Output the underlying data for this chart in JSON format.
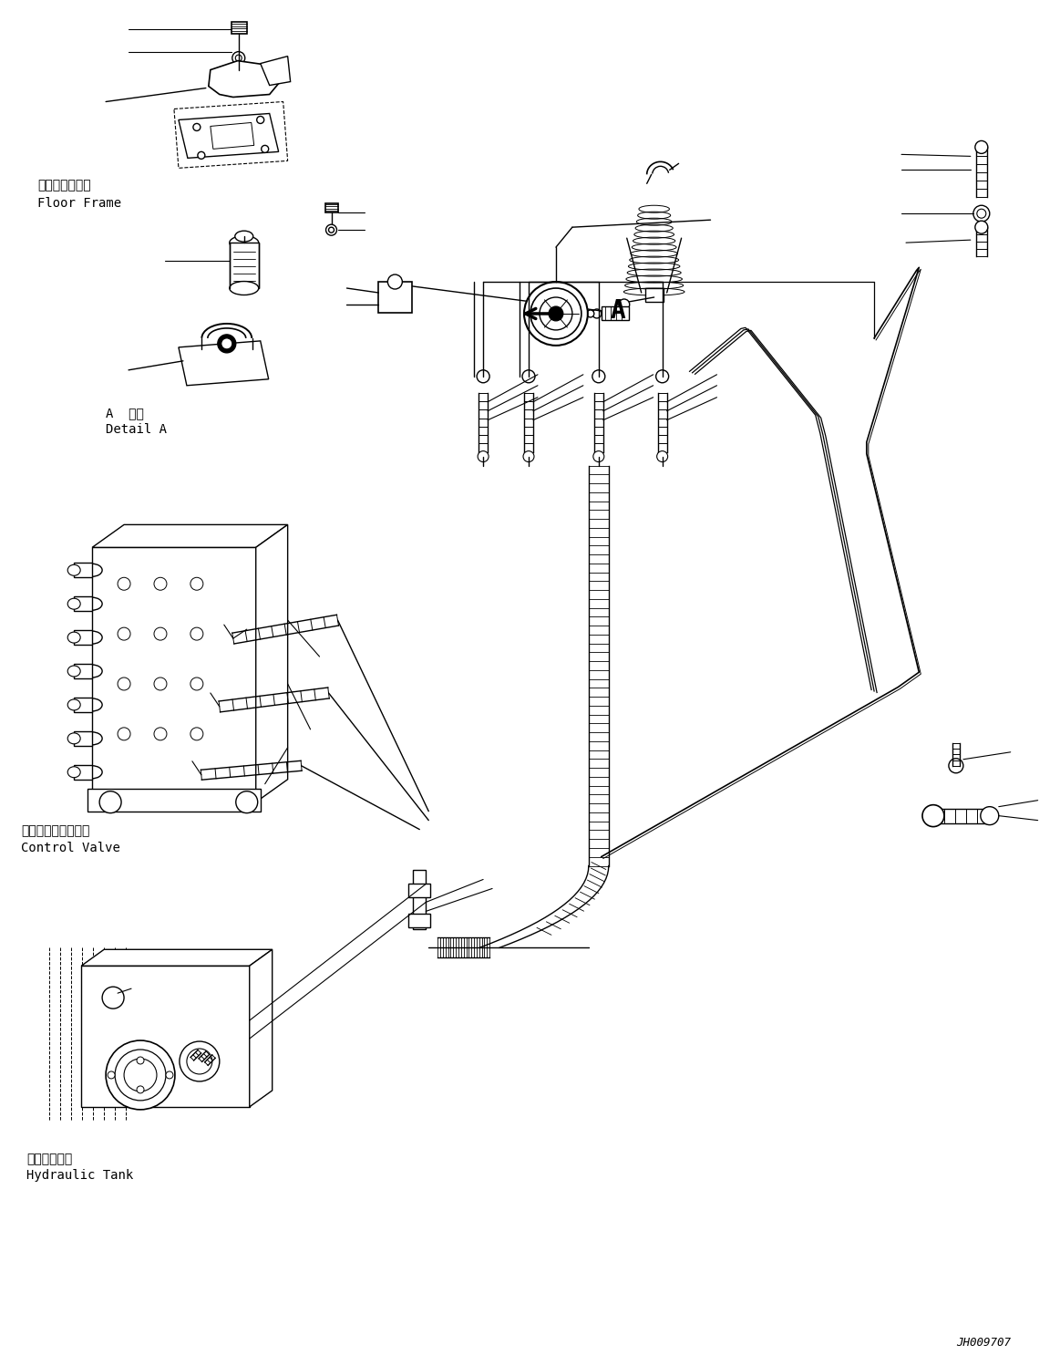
{
  "background_color": "#ffffff",
  "line_color": "#000000",
  "lw": 1.0,
  "fig_width": 11.63,
  "fig_height": 14.86,
  "dpi": 100,
  "labels": {
    "floor_frame_jp": "フロアフレーム",
    "floor_frame_en": "Floor Frame",
    "detail_a_jp": "A  詳細",
    "detail_a_en": "Detail A",
    "control_valve_jp": "コントロールバルブ",
    "control_valve_en": "Control Valve",
    "hydraulic_tank_jp": "作動油タンク",
    "hydraulic_tank_en": "Hydraulic Tank",
    "part_number": "JH009707"
  }
}
